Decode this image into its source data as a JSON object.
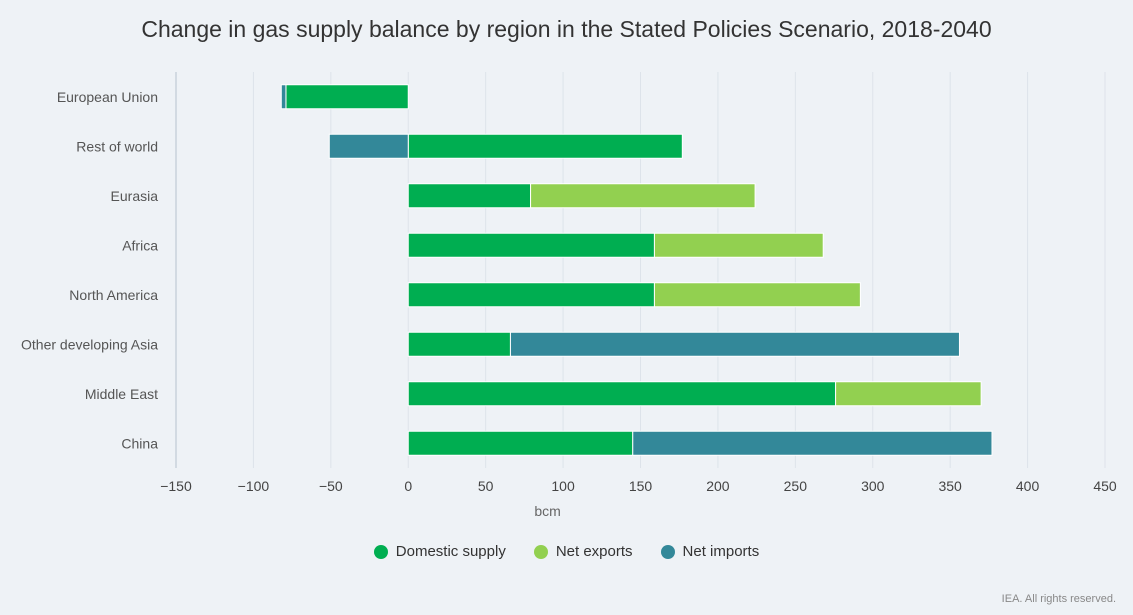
{
  "chart_data": {
    "type": "bar",
    "orientation": "horizontal",
    "stacked": true,
    "title": "Change in gas supply balance by region in the Stated Policies Scenario, 2018-2040",
    "xlabel": "bcm",
    "ylabel": "",
    "xlim": [
      -150,
      450
    ],
    "xticks": [
      -150,
      -100,
      -50,
      0,
      50,
      100,
      150,
      200,
      250,
      300,
      350,
      400,
      450
    ],
    "xtick_labels": [
      "−150",
      "−100",
      "−50",
      "0",
      "50",
      "100",
      "150",
      "200",
      "250",
      "300",
      "350",
      "400",
      "450"
    ],
    "grid": true,
    "legend_position": "bottom",
    "categories": [
      "European Union",
      "Rest of world",
      "Eurasia",
      "Africa",
      "North America",
      "Other developing Asia",
      "Middle East",
      "China"
    ],
    "series": [
      {
        "name": "Domestic supply",
        "color": "#00ae51",
        "values": [
          -79,
          177,
          79,
          159,
          159,
          66,
          276,
          145
        ]
      },
      {
        "name": "Net exports",
        "color": "#92d050",
        "values": [
          0,
          0,
          145,
          109,
          133,
          0,
          94,
          0
        ]
      },
      {
        "name": "Net imports",
        "color": "#338899",
        "values": [
          -3,
          -51,
          0,
          0,
          0,
          290,
          0,
          232
        ]
      }
    ]
  },
  "credit": "IEA. All rights reserved."
}
